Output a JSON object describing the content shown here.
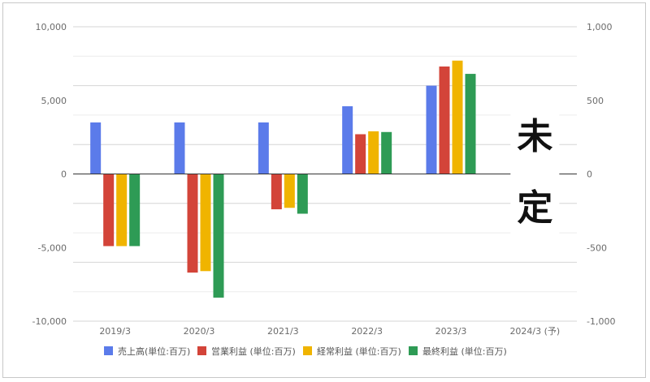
{
  "chart_data": {
    "type": "bar",
    "categories": [
      "2019/3",
      "2020/3",
      "2021/3",
      "2022/3",
      "2023/3",
      "2024/3 (予)"
    ],
    "series": [
      {
        "name": "売上高(単位:百万)",
        "color": "#5b7bea",
        "values": [
          3500,
          3500,
          3500,
          4600,
          6000,
          null
        ]
      },
      {
        "name": "営業利益 (単位:百万)",
        "color": "#d34439",
        "values": [
          -4900,
          -6700,
          -2400,
          2700,
          7300,
          null
        ]
      },
      {
        "name": "経常利益 (単位:百万)",
        "color": "#f0b400",
        "values": [
          -4900,
          -6600,
          -2300,
          2900,
          7700,
          null
        ]
      },
      {
        "name": "最終利益 (単位:百万)",
        "color": "#2e9b55",
        "values": [
          -4900,
          -8400,
          -2700,
          2850,
          6800,
          null
        ]
      }
    ],
    "ylim": [
      -10000,
      10000
    ],
    "y_ticks": [
      "10,000",
      "5,000",
      "0",
      "-5,000",
      "-10,000"
    ],
    "y2lim": [
      -1000,
      1000
    ],
    "y2_ticks": [
      "1,000",
      "500",
      "0",
      "-500",
      "-1,000"
    ],
    "grid": true,
    "legend_position": "bottom",
    "annotation": "未定"
  }
}
